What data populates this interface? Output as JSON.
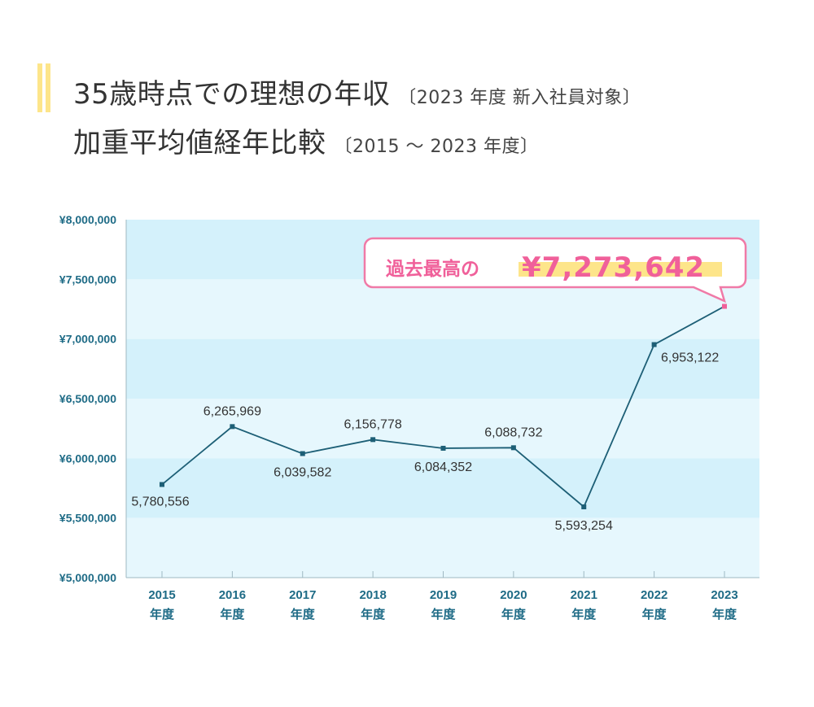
{
  "header": {
    "title_line1": "35歳時点での理想の年収",
    "title_line1_note": "〔2023 年度 新入社員対象〕",
    "title_line2": "加重平均値経年比較",
    "title_line2_note": "〔2015 ～ 2023 年度〕"
  },
  "chart_data": {
    "type": "line",
    "categories": [
      "2015\n年度",
      "2016\n年度",
      "2017\n年度",
      "2018\n年度",
      "2019\n年度",
      "2020\n年度",
      "2021\n年度",
      "2022\n年度",
      "2023\n年度"
    ],
    "x_years": [
      "2015",
      "2016",
      "2017",
      "2018",
      "2019",
      "2020",
      "2021",
      "2022",
      "2023"
    ],
    "x_suffix": "年度",
    "values": [
      5780556,
      6265969,
      6039582,
      6156778,
      6084352,
      6088732,
      5593254,
      6953122,
      7273642
    ],
    "data_labels": [
      "5,780,556",
      "6,265,969",
      "6,039,582",
      "6,156,778",
      "6,084,352",
      "6,088,732",
      "5,593,254",
      "6,953,122",
      ""
    ],
    "ylim": [
      5000000,
      8000000
    ],
    "yticks": [
      "¥5,000,000",
      "¥5,500,000",
      "¥6,000,000",
      "¥6,500,000",
      "¥7,000,000",
      "¥7,500,000",
      "¥8,000,000"
    ],
    "grid": "alternating horizontal bands",
    "annotation": {
      "prefix": "過去最高の",
      "value": "¥7,273,642"
    },
    "colors": {
      "line": "#1d5f76",
      "axis_text": "#1e6b86",
      "band_dark": "#d4f1fb",
      "band_light": "#e6f7fd",
      "highlight": "#f0609a",
      "marker_highlight": "#fde58a"
    }
  }
}
